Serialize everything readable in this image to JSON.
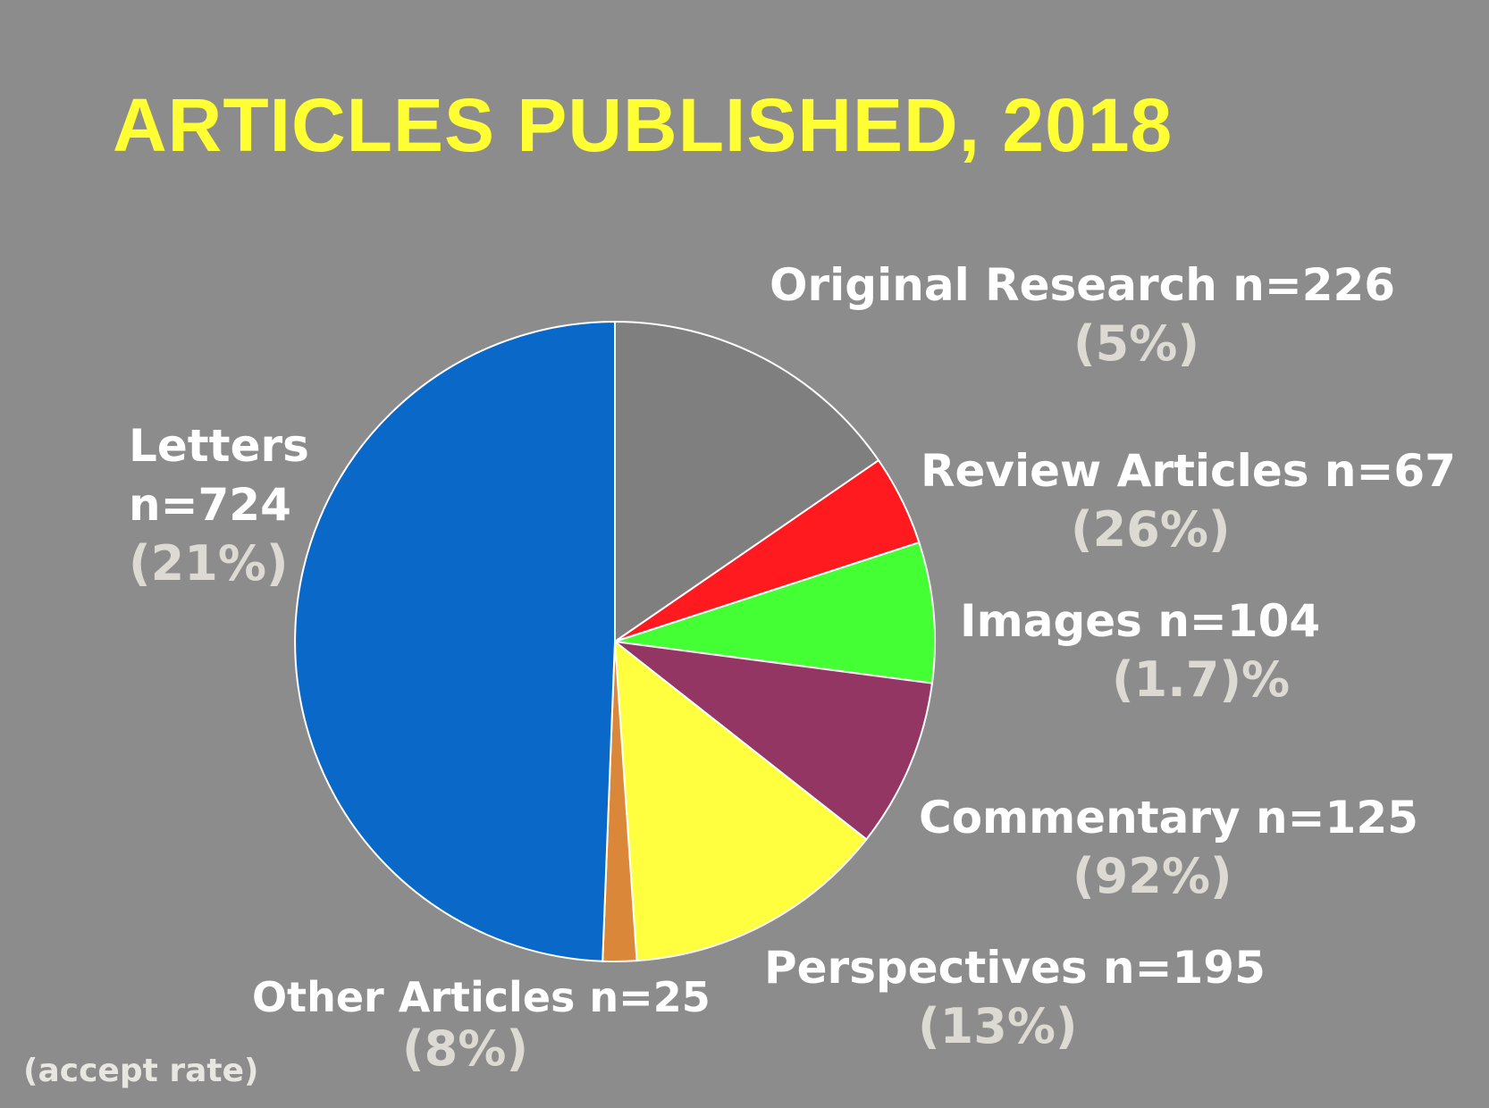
{
  "title": "ARTICLES PUBLISHED, 2018",
  "footnote": "(accept rate)",
  "chart_data": {
    "type": "pie",
    "title": "ARTICLES PUBLISHED, 2018",
    "slices": [
      {
        "key": "original_research",
        "label": "Original  Research n=226",
        "value": 226,
        "rate": "(5%)",
        "color": "#7f7f7f"
      },
      {
        "key": "review_articles",
        "label": "Review Articles n=67",
        "value": 67,
        "rate": "(26%)",
        "color": "#ff1a1f"
      },
      {
        "key": "images",
        "label": "Images n=104",
        "value": 104,
        "rate": "(1.7)%",
        "color": "#44ff33"
      },
      {
        "key": "commentary",
        "label": "Commentary n=125",
        "value": 125,
        "rate": "(92%)",
        "color": "#933663"
      },
      {
        "key": "perspectives",
        "label": "Perspectives n=195",
        "value": 195,
        "rate": "(13%)",
        "color": "#ffff40"
      },
      {
        "key": "other_articles",
        "label": "Other Articles n=25",
        "value": 25,
        "rate": "(8%)",
        "color": "#da873a"
      },
      {
        "key": "letters",
        "label": "Letters\nn=724",
        "value": 724,
        "rate": "(21%)",
        "color": "#0a69c8"
      }
    ]
  }
}
